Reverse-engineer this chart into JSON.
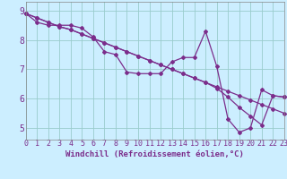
{
  "line_straight1": [
    8.9,
    8.75,
    8.6,
    8.45,
    8.35,
    8.2,
    8.05,
    7.9,
    7.75,
    7.6,
    7.45,
    7.3,
    7.15,
    7.0,
    6.85,
    6.7,
    6.55,
    6.4,
    6.25,
    6.1,
    5.95,
    5.8,
    5.65,
    5.5
  ],
  "line_straight2": [
    8.9,
    8.75,
    8.6,
    8.45,
    8.35,
    8.2,
    8.05,
    7.9,
    7.75,
    7.6,
    7.45,
    7.3,
    7.15,
    7.0,
    6.85,
    6.7,
    6.55,
    6.35,
    6.05,
    5.7,
    5.4,
    5.1,
    6.1,
    6.05
  ],
  "line_wiggly": [
    8.9,
    8.6,
    8.5,
    8.5,
    8.5,
    8.4,
    8.1,
    7.6,
    7.5,
    6.9,
    6.85,
    6.85,
    6.85,
    7.25,
    7.4,
    7.4,
    8.3,
    7.1,
    5.3,
    4.85,
    5.0,
    6.3,
    6.1,
    6.05
  ],
  "x": [
    0,
    1,
    2,
    3,
    4,
    5,
    6,
    7,
    8,
    9,
    10,
    11,
    12,
    13,
    14,
    15,
    16,
    17,
    18,
    19,
    20,
    21,
    22,
    23
  ],
  "line_color": "#7B2D8B",
  "bg_color": "#cceeff",
  "grid_color": "#99cccc",
  "xlabel": "Windchill (Refroidissement éolien,°C)",
  "ylim": [
    4.6,
    9.3
  ],
  "xlim": [
    0,
    23
  ],
  "xlabel_fontsize": 6.5,
  "tick_fontsize": 6
}
